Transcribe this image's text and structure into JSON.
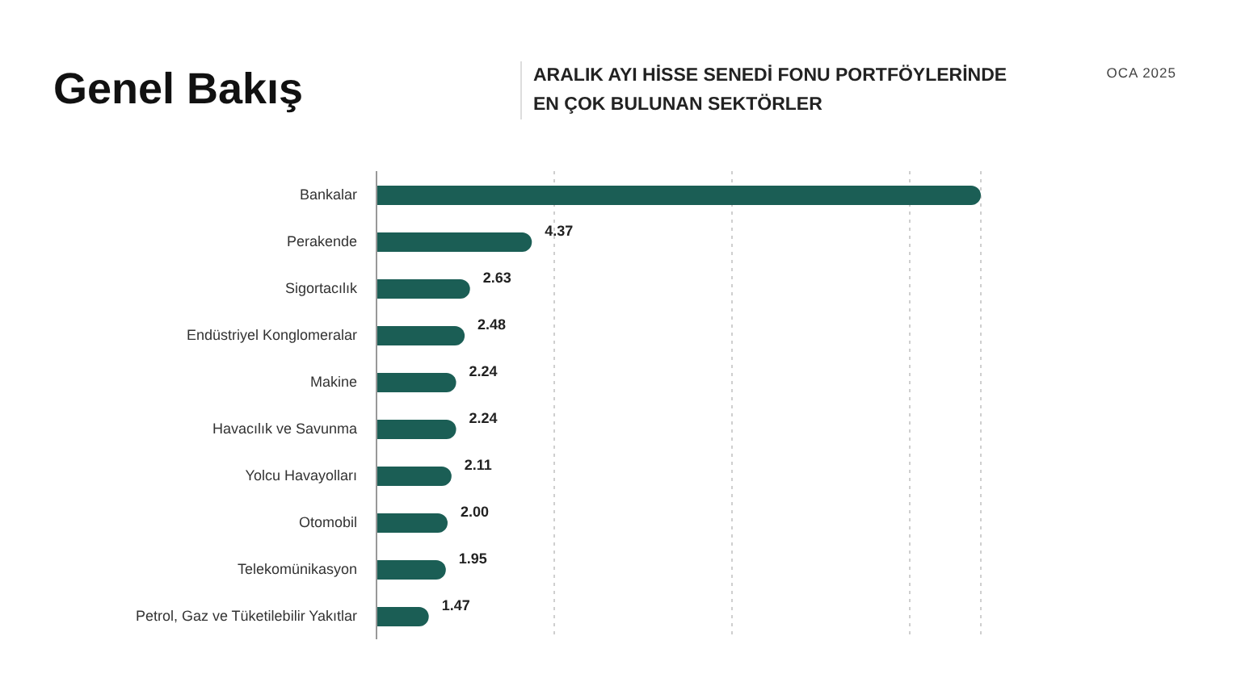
{
  "chart_data": {
    "type": "bar",
    "orientation": "horizontal",
    "title": "Genel Bakış",
    "subtitle": "ARALIK AYI HİSSE SENEDİ FONU PORTFÖYLERİNDE\nEN ÇOK BULUNAN SEKTÖRLER",
    "annotations": [
      "OCA 2025"
    ],
    "categories": [
      "Bankalar",
      "Perakende",
      "Sigortacılık",
      "Endüstriyel Konglomeralar",
      "Makine",
      "Havacılık ve Savunma",
      "Yolcu Havayolları",
      "Otomobil",
      "Telekomünikasyon",
      "Petrol, Gaz ve Tüketilebilir Yakıtlar"
    ],
    "values": [
      17.0,
      4.37,
      2.63,
      2.48,
      2.24,
      2.24,
      2.11,
      2.0,
      1.95,
      1.47
    ],
    "value_labels": [
      null,
      "4.37",
      "2.63",
      "2.48",
      "2.24",
      "2.24",
      "2.11",
      "2.00",
      "1.95",
      "1.47"
    ],
    "color": "#1b5e55",
    "xlim": [
      0,
      17
    ],
    "xticks": [
      {
        "value": 5,
        "label": null
      },
      {
        "value": 10,
        "label": null
      },
      {
        "value": 15,
        "label": null
      },
      {
        "value": 17,
        "label": null
      }
    ],
    "grid": "x",
    "tick_labels": "y",
    "legend": false
  }
}
